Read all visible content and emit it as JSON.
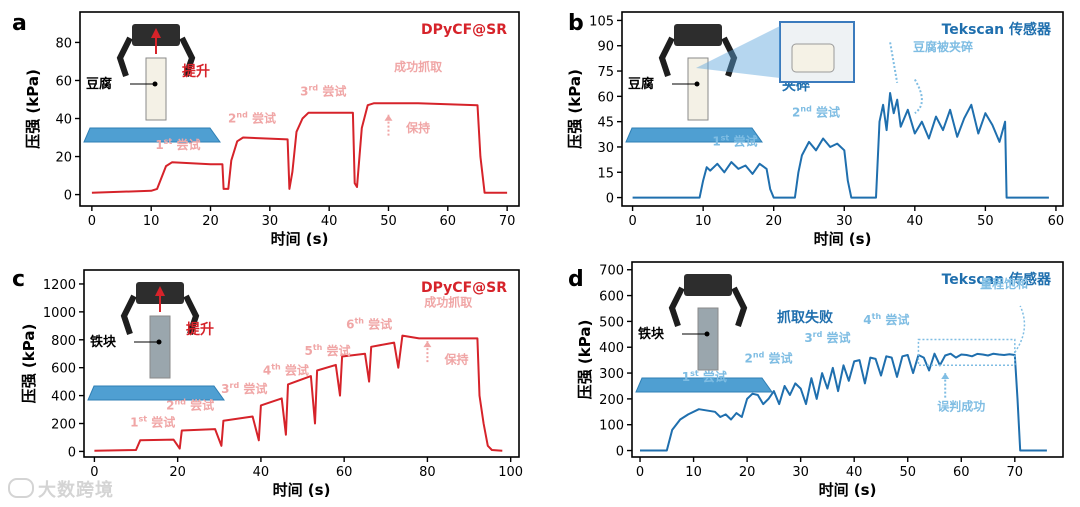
{
  "chart_data": [
    {
      "type": "line",
      "panel": "a",
      "title": "DPyCF@SR",
      "title_color": "#d6232a",
      "line_color": "#d6232a",
      "anno_color": "#f0a6a6",
      "xlabel": "时间 (s)",
      "ylabel": "压强 (kPa)",
      "xlim": [
        -2,
        72
      ],
      "ylim": [
        -6,
        96
      ],
      "xticks": [
        0,
        10,
        20,
        30,
        40,
        50,
        60,
        70
      ],
      "yticks": [
        0,
        20,
        40,
        60,
        80
      ],
      "series": [
        {
          "name": "DPyCF@SR",
          "x": [
            0,
            10,
            11,
            11.5,
            12.5,
            13.5,
            20,
            22,
            22.2,
            23,
            23.5,
            24.5,
            25.5,
            33,
            33.3,
            33.8,
            34.5,
            35.5,
            36.5,
            44,
            44.3,
            44.7,
            45.5,
            46.5,
            47.5,
            55,
            65,
            65.5,
            66.2,
            70
          ],
          "y": [
            1,
            2,
            3,
            7,
            15,
            17,
            16,
            16,
            3,
            3,
            18,
            28,
            30,
            29,
            3,
            12,
            33,
            40,
            43,
            43,
            6,
            4,
            35,
            47,
            48,
            48,
            47,
            20,
            1,
            1
          ]
        }
      ],
      "annotations": [
        {
          "text": "1st 尝试",
          "x": 14.5,
          "y": 24
        },
        {
          "text": "2nd 尝试",
          "x": 27,
          "y": 38
        },
        {
          "text": "3rd 尝试",
          "x": 39,
          "y": 52
        },
        {
          "text": "成功抓取",
          "x": 55,
          "y": 65
        },
        {
          "text": "保持",
          "x": 55,
          "y": 33
        }
      ],
      "inset_labels": {
        "object": "豆腐",
        "action": "提升"
      }
    },
    {
      "type": "line",
      "panel": "b",
      "title": "Tekscan 传感器",
      "title_color": "#1f6fae",
      "line_color": "#1f6fae",
      "anno_color": "#7fbde3",
      "xlabel": "时间 (s)",
      "ylabel": "压强 (kPa)",
      "xlim": [
        -1.5,
        61
      ],
      "ylim": [
        -5,
        110
      ],
      "xticks": [
        0,
        10,
        20,
        30,
        40,
        50,
        60
      ],
      "yticks": [
        0,
        15,
        30,
        45,
        60,
        75,
        90,
        105
      ],
      "series": [
        {
          "name": "Tekscan",
          "x": [
            0,
            9.5,
            10,
            10.5,
            11,
            12,
            13,
            14,
            15,
            16,
            17,
            18,
            19,
            19.5,
            20,
            23,
            23.5,
            24,
            25,
            26,
            27,
            28,
            29,
            30,
            30.5,
            31,
            34.5,
            35,
            35.5,
            36,
            36.5,
            37,
            37.5,
            38,
            39,
            40,
            41,
            42,
            43,
            44,
            45,
            46,
            47,
            48,
            49,
            50,
            51,
            52,
            52.8,
            53,
            54,
            59
          ],
          "y": [
            0,
            0,
            10,
            18,
            16,
            20,
            15,
            21,
            17,
            19,
            14,
            20,
            17,
            5,
            0,
            0,
            15,
            25,
            33,
            28,
            35,
            30,
            32,
            28,
            10,
            0,
            0,
            45,
            55,
            40,
            62,
            50,
            58,
            42,
            52,
            38,
            45,
            35,
            48,
            40,
            52,
            36,
            47,
            55,
            38,
            50,
            43,
            33,
            45,
            0,
            0,
            0
          ]
        }
      ],
      "annotations": [
        {
          "text": "1st 尝试",
          "x": 14.5,
          "y": 31
        },
        {
          "text": "2nd 尝试",
          "x": 26,
          "y": 48
        },
        {
          "text": "豆腐被夹碎",
          "x": 44,
          "y": 87
        }
      ],
      "inset_labels": {
        "object": "豆腐",
        "action": "夹碎"
      }
    },
    {
      "type": "line",
      "panel": "c",
      "title": "DPyCF@SR",
      "title_color": "#d6232a",
      "line_color": "#d6232a",
      "anno_color": "#f0a6a6",
      "xlabel": "时间 (s)",
      "ylabel": "压强 (kPa)",
      "xlim": [
        -2.5,
        102
      ],
      "ylim": [
        -40,
        1300
      ],
      "xticks": [
        0,
        20,
        40,
        60,
        80,
        100
      ],
      "yticks": [
        0,
        200,
        400,
        600,
        800,
        1000,
        1200
      ],
      "series": [
        {
          "name": "DPyCF@SR",
          "x": [
            0,
            10,
            11,
            19,
            20.5,
            21,
            29,
            30.5,
            31,
            38,
            39.5,
            40,
            45,
            46,
            46.5,
            52,
            53,
            53.5,
            58,
            59,
            59.5,
            65,
            66,
            66.5,
            72,
            73,
            74,
            78,
            92,
            92.5,
            93.5,
            94.5,
            95.5,
            98
          ],
          "y": [
            5,
            10,
            80,
            85,
            20,
            150,
            160,
            40,
            220,
            250,
            80,
            330,
            380,
            120,
            480,
            540,
            200,
            580,
            620,
            400,
            680,
            700,
            500,
            750,
            780,
            600,
            830,
            810,
            810,
            400,
            200,
            40,
            10,
            5
          ]
        }
      ],
      "annotations": [
        {
          "text": "1st 尝试",
          "x": 14,
          "y": 180
        },
        {
          "text": "2nd 尝试",
          "x": 23,
          "y": 300
        },
        {
          "text": "3rd 尝试",
          "x": 36,
          "y": 420
        },
        {
          "text": "4th 尝试",
          "x": 46,
          "y": 550
        },
        {
          "text": "5th 尝试",
          "x": 56,
          "y": 690
        },
        {
          "text": "6th 尝试",
          "x": 66,
          "y": 880
        },
        {
          "text": "成功抓取",
          "x": 85,
          "y": 1040
        },
        {
          "text": "保持",
          "x": 87,
          "y": 630
        }
      ],
      "inset_labels": {
        "object": "铁块",
        "action": "提升"
      }
    },
    {
      "type": "line",
      "panel": "d",
      "title": "Tekscan 传感器",
      "title_color": "#1f6fae",
      "line_color": "#1f6fae",
      "anno_color": "#7fbde3",
      "xlabel": "时间 (s)",
      "ylabel": "压强 (kPa)",
      "xlim": [
        -1.5,
        79
      ],
      "ylim": [
        -25,
        730
      ],
      "xticks": [
        0,
        10,
        20,
        30,
        40,
        50,
        60,
        70
      ],
      "yticks": [
        0,
        100,
        200,
        300,
        400,
        500,
        600,
        700
      ],
      "series": [
        {
          "name": "Tekscan",
          "x": [
            0,
            5,
            6,
            7.5,
            9,
            11,
            14,
            15,
            16,
            17,
            18,
            19,
            20,
            21,
            22,
            23,
            24,
            25,
            26,
            27,
            28,
            29,
            30,
            31,
            32,
            33,
            34,
            35,
            36,
            37,
            38,
            39,
            40,
            41,
            42,
            43,
            44,
            45,
            46,
            47,
            48,
            49,
            50,
            51,
            52,
            53,
            54,
            55,
            56,
            57,
            58,
            59,
            60,
            61,
            62,
            63,
            64,
            65,
            66,
            67,
            68,
            69,
            70,
            70.5,
            71,
            76
          ],
          "y": [
            0,
            0,
            80,
            120,
            140,
            160,
            150,
            130,
            140,
            120,
            145,
            130,
            200,
            220,
            215,
            180,
            200,
            230,
            180,
            250,
            215,
            260,
            240,
            180,
            280,
            200,
            300,
            240,
            320,
            230,
            330,
            270,
            345,
            350,
            260,
            360,
            355,
            290,
            365,
            360,
            285,
            365,
            370,
            300,
            370,
            360,
            310,
            375,
            330,
            368,
            375,
            360,
            372,
            370,
            365,
            374,
            372,
            368,
            375,
            372,
            370,
            373,
            370,
            200,
            0,
            0
          ]
        }
      ],
      "annotations": [
        {
          "text": "1st 尝试",
          "x": 12,
          "y": 270
        },
        {
          "text": "2nd 尝试",
          "x": 24,
          "y": 340
        },
        {
          "text": "3rd 尝试",
          "x": 35,
          "y": 420
        },
        {
          "text": "4th 尝试",
          "x": 46,
          "y": 490
        },
        {
          "text": "量程饱和",
          "x": 68,
          "y": 630
        },
        {
          "text": "误判成功",
          "x": 60,
          "y": 155
        }
      ],
      "inset_labels": {
        "object": "铁块",
        "action": "抓取失败"
      }
    }
  ],
  "watermark": "大数跨境"
}
